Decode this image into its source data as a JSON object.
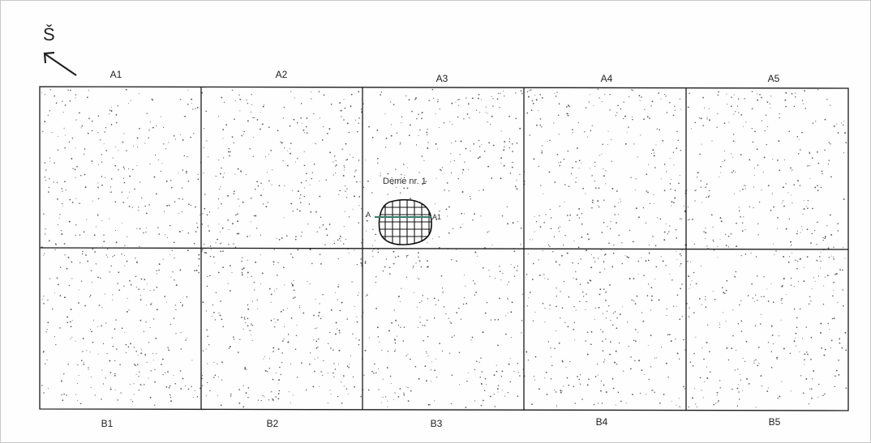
{
  "north": "Š",
  "top_labels": [
    "A1",
    "A2",
    "A3",
    "A4",
    "A5"
  ],
  "bottom_labels": [
    "B1",
    "B2",
    "B3",
    "B4",
    "B5"
  ],
  "deme": {
    "label": "Dėmė nr. 1",
    "section_start": "A",
    "section_end": "A1"
  },
  "colors": {
    "grid": "#1a1a1a",
    "section_line": "#3a7a6a",
    "stipple": "#555555"
  }
}
